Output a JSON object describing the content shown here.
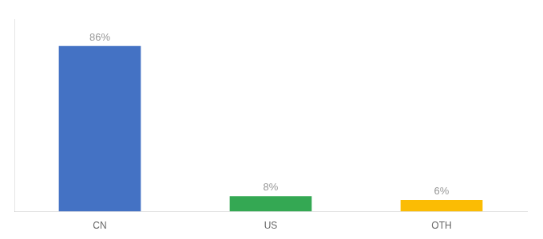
{
  "chart_data": {
    "type": "bar",
    "categories": [
      "CN",
      "US",
      "OTH"
    ],
    "values": [
      86,
      8,
      6
    ],
    "value_labels": [
      "86%",
      "8%",
      "6%"
    ],
    "colors": [
      "#4472C4",
      "#34A853",
      "#FBBC04"
    ],
    "ylim": [
      0,
      100
    ],
    "grid": false,
    "data_labels": true,
    "tick_labels": "x"
  }
}
